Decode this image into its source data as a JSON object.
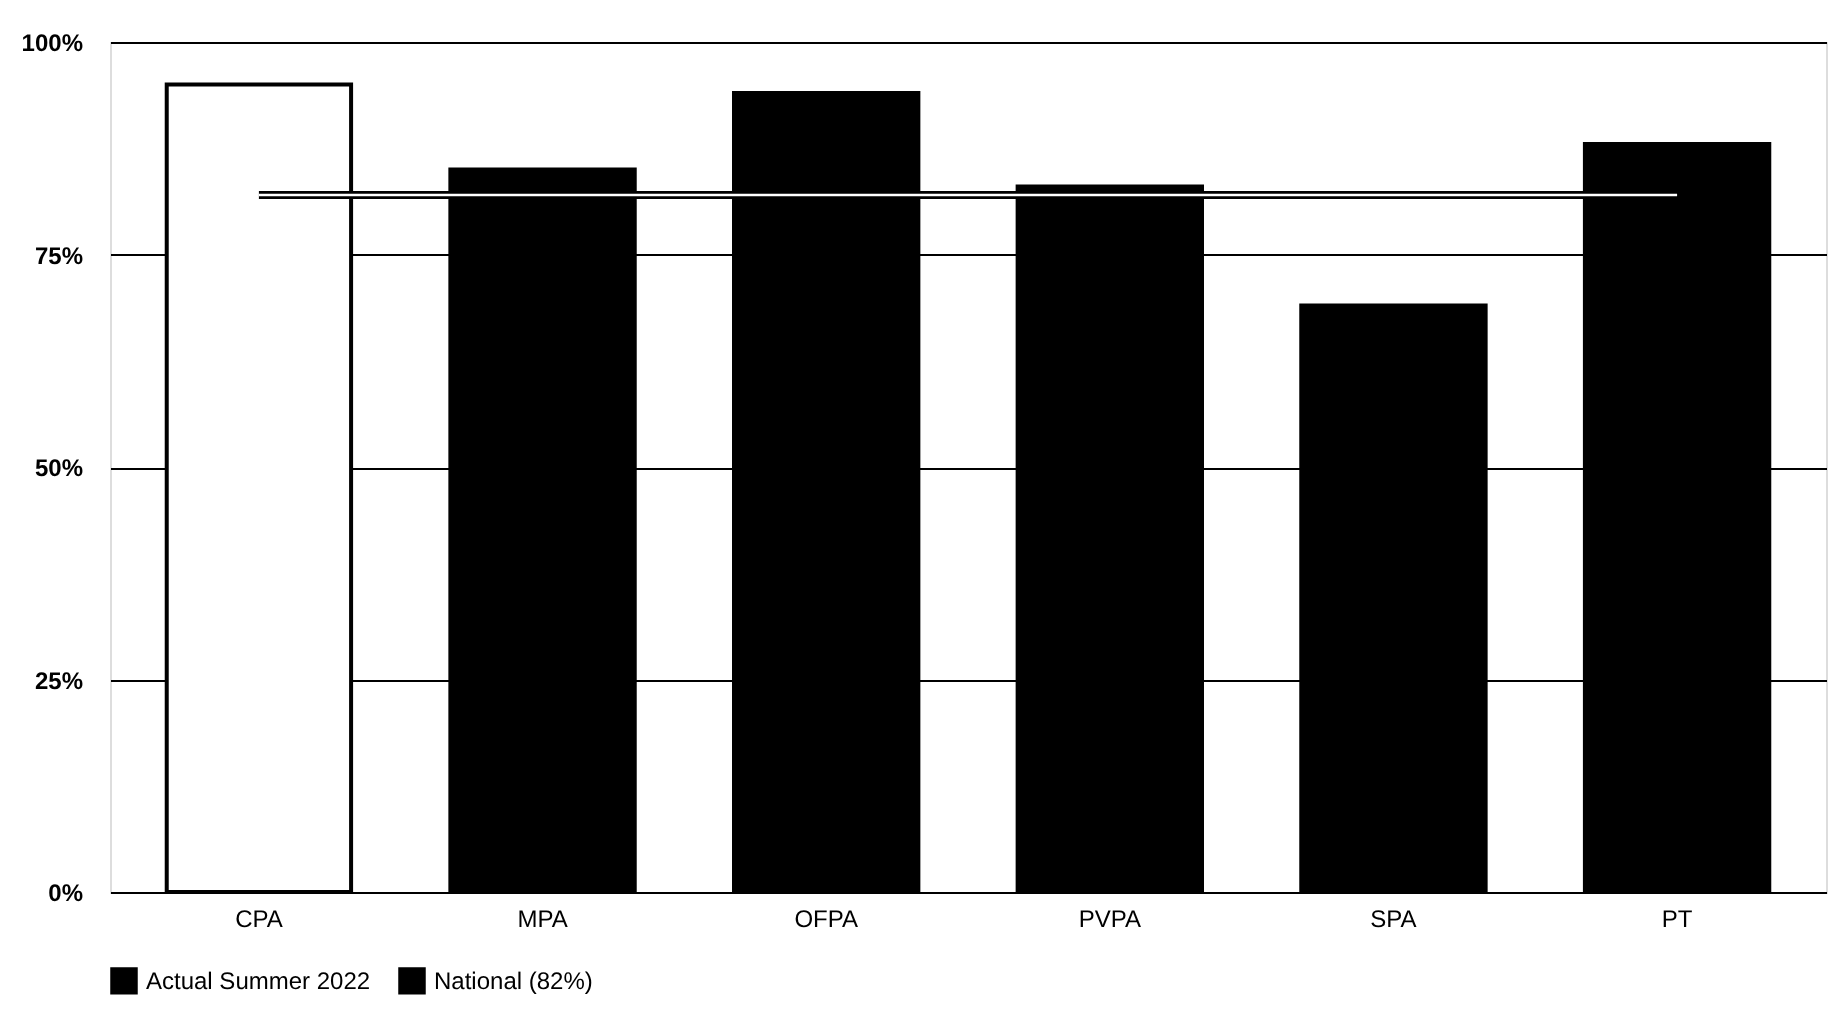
{
  "chart_data": {
    "type": "bar",
    "categories": [
      "CPA",
      "MPA",
      "OFPA",
      "PVPA",
      "SPA",
      "PT"
    ],
    "series": [
      {
        "name": "Actual Summer 2022",
        "color": "#000000",
        "colors": [
          "#ffffff",
          "#000000",
          "#000000",
          "#000000",
          "#000000",
          "#000000"
        ],
        "values": [
          95,
          85,
          94,
          83,
          69,
          88
        ]
      },
      {
        "name": "National (82%)",
        "type": "line",
        "color": "#000000",
        "values": [
          82,
          82,
          82,
          82,
          82,
          82
        ]
      }
    ],
    "ylim": [
      0,
      100
    ],
    "yticks": [
      {
        "value": 0,
        "label": "0%"
      },
      {
        "value": 25,
        "label": "25%"
      },
      {
        "value": 50,
        "label": "50%"
      },
      {
        "value": 75,
        "label": "75%"
      },
      {
        "value": 100,
        "label": "100%"
      }
    ],
    "grid": "y",
    "legend": "bottom",
    "marker": "none",
    "line_style": "solid"
  }
}
